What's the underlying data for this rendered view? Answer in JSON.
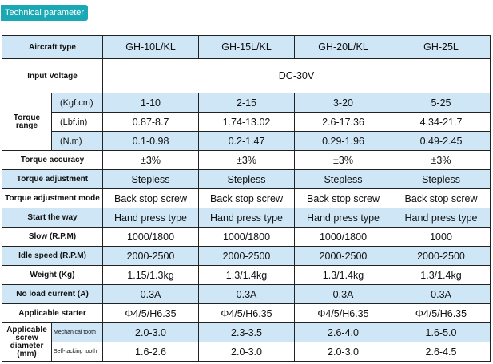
{
  "section_title": "Technical parameter",
  "header": {
    "label": "Aircraft type",
    "models": [
      "GH-10L/KL",
      "GH-15L/KL",
      "GH-20L/KL",
      "GH-25L"
    ]
  },
  "input_voltage": {
    "label": "Input Voltage",
    "value": "DC-30V"
  },
  "torque_range": {
    "label_line1": "Torque",
    "label_line2": "range",
    "rows": [
      {
        "unit": "(Kgf.cm)",
        "values": [
          "1-10",
          "2-15",
          "3-20",
          "5-25"
        ]
      },
      {
        "unit": "(Lbf.in)",
        "values": [
          "0.87-8.7",
          "1.74-13.02",
          "2.6-17.36",
          "4.34-21.7"
        ]
      },
      {
        "unit": "(N.m)",
        "values": [
          "0.1-0.98",
          "0.2-1.47",
          "0.29-1.96",
          "0.49-2.45"
        ]
      }
    ]
  },
  "rows": [
    {
      "label": "Torque accuracy",
      "values": [
        "±3%",
        "±3%",
        "±3%",
        "±3%"
      ]
    },
    {
      "label": "Torque adjustment",
      "values": [
        "Stepless",
        "Stepless",
        "Stepless",
        "Stepless"
      ]
    },
    {
      "label": "Torque adjustment mode",
      "values": [
        "Back stop screw",
        "Back stop screw",
        "Back stop screw",
        "Back stop screw"
      ]
    },
    {
      "label": "Start the way",
      "values": [
        "Hand press type",
        "Hand press type",
        "Hand press type",
        "Hand press type"
      ]
    },
    {
      "label": "Slow (R.P.M)",
      "values": [
        "1000/1800",
        "1000/1800",
        "1000/1800",
        "1000"
      ]
    },
    {
      "label": "Idle speed (R.P.M)",
      "values": [
        "2000-2500",
        "2000-2500",
        "2000-2500",
        "2000-2500"
      ]
    },
    {
      "label": "Weight (Kg)",
      "values": [
        "1.15/1.3kg",
        "1.3/1.4kg",
        "1.3/1.4kg",
        "1.3/1.4kg"
      ]
    },
    {
      "label": "No load current (A)",
      "values": [
        "0.3A",
        "0.3A",
        "0.3A",
        "0.3A"
      ]
    },
    {
      "label": "Applicable starter",
      "values": [
        "Φ4/5/H6.35",
        "Φ4/5/H6.35",
        "Φ4/5/H6.35",
        "Φ4/5/H6.35"
      ]
    }
  ],
  "screw_diameter": {
    "label_line1": "Applicable",
    "label_line2": "screw",
    "label_line3": "diameter",
    "label_line4": "(mm)",
    "rows": [
      {
        "type": "Mechanical tooth",
        "values": [
          "2.0-3.0",
          "2.3-3.5",
          "2.6-4.0",
          "1.6-5.0"
        ]
      },
      {
        "type": "Self-tacking tooth",
        "values": [
          "1.6-2.6",
          "2.0-3.0",
          "2.0-3.0",
          "2.6-4.5"
        ]
      }
    ]
  }
}
